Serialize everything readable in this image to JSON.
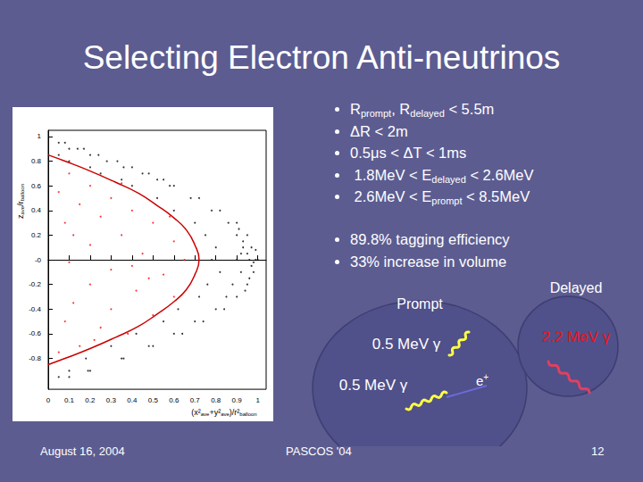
{
  "title": "Selecting Electron Anti-neutrinos",
  "bullets": [
    [
      {
        "t": "R"
      },
      {
        "t": "prompt",
        "sub": true
      },
      {
        "t": ", R"
      },
      {
        "t": "delayed",
        "sub": true
      },
      {
        "t": " < 5.5m"
      }
    ],
    [
      {
        "t": "ΔR < 2m"
      }
    ],
    [
      {
        "t": "0.5μs < ΔT < 1ms"
      }
    ],
    [
      {
        "t": " 1.8MeV < E"
      },
      {
        "t": "delayed",
        "sub": true
      },
      {
        "t": " < 2.6MeV"
      }
    ],
    [
      {
        "t": " 2.6MeV < E"
      },
      {
        "t": "prompt",
        "sub": true
      },
      {
        "t": " < 8.5MeV"
      }
    ]
  ],
  "bullets2": [
    [
      {
        "t": "89.8% tagging efficiency"
      }
    ],
    [
      {
        "t": "33% increase in volume"
      }
    ]
  ],
  "diagram": {
    "prompt": "Prompt",
    "delayed": "Delayed",
    "gamma_a": "0.5 MeV γ",
    "gamma_b": "0.5 MeV γ",
    "gamma_delayed": "2.2 MeV γ",
    "positron": [
      {
        "t": "e"
      },
      {
        "t": "+",
        "sup": true
      }
    ]
  },
  "footer": {
    "date": "August 16, 2004",
    "venue": "PASCOS '04",
    "page": "12"
  },
  "chart_data": {
    "type": "scatter",
    "xlabel": [
      {
        "t": "(x²"
      },
      {
        "t": "ave",
        "sub": true
      },
      {
        "t": "+y²"
      },
      {
        "t": "ave",
        "sub": true
      },
      {
        "t": ")/r²"
      },
      {
        "t": "balloon",
        "sub": true
      }
    ],
    "ylabel": [
      {
        "t": "z"
      },
      {
        "t": "ave",
        "sub": true
      },
      {
        "t": "/r"
      },
      {
        "t": "balloon",
        "sub": true
      }
    ],
    "xlim": [
      0,
      1.04
    ],
    "ylim": [
      -1.05,
      1.05
    ],
    "xticks": [
      0,
      0.1,
      0.2,
      0.3,
      0.4,
      0.5,
      0.6,
      0.7,
      0.8,
      0.9,
      1
    ],
    "yticks": [
      -0.8,
      -0.6,
      -0.4,
      -0.2,
      {
        "value": 0,
        "label": "-0"
      },
      0.2,
      0.4,
      0.6,
      0.8,
      1
    ],
    "series": [
      {
        "type": "scatter",
        "color": "#000000",
        "marker": "dot",
        "values": [
          [
            0.05,
            0.95
          ],
          [
            0.08,
            0.95
          ],
          [
            0.1,
            0.9
          ],
          [
            0.14,
            0.9
          ],
          [
            0.17,
            0.9
          ],
          [
            0.05,
            0.85
          ],
          [
            0.2,
            0.85
          ],
          [
            0.24,
            0.85
          ],
          [
            0.1,
            0.8
          ],
          [
            0.28,
            0.8
          ],
          [
            0.33,
            0.8
          ],
          [
            0.2,
            0.75
          ],
          [
            0.4,
            0.75
          ],
          [
            0.36,
            0.75
          ],
          [
            0.25,
            0.7
          ],
          [
            0.45,
            0.7
          ],
          [
            0.48,
            0.7
          ],
          [
            0.35,
            0.65
          ],
          [
            0.52,
            0.65
          ],
          [
            0.55,
            0.65
          ],
          [
            0.4,
            0.6
          ],
          [
            0.58,
            0.6
          ],
          [
            0.6,
            0.6
          ],
          [
            0.52,
            0.5
          ],
          [
            0.68,
            0.5
          ],
          [
            0.72,
            0.5
          ],
          [
            0.6,
            0.4
          ],
          [
            0.78,
            0.4
          ],
          [
            0.82,
            0.4
          ],
          [
            0.7,
            0.3
          ],
          [
            0.86,
            0.3
          ],
          [
            0.9,
            0.3
          ],
          [
            0.75,
            0.2
          ],
          [
            0.9,
            0.2
          ],
          [
            0.95,
            0.2
          ],
          [
            0.8,
            0.1
          ],
          [
            0.93,
            0.1
          ],
          [
            0.97,
            0.1
          ],
          [
            0.78,
            0
          ],
          [
            0.9,
            0
          ],
          [
            0.96,
            0
          ],
          [
            0.99,
            0
          ],
          [
            0.82,
            -0.1
          ],
          [
            0.92,
            -0.1
          ],
          [
            0.98,
            -0.1
          ],
          [
            0.76,
            -0.2
          ],
          [
            0.88,
            -0.2
          ],
          [
            0.95,
            -0.2
          ],
          [
            0.72,
            -0.3
          ],
          [
            0.85,
            -0.3
          ],
          [
            0.9,
            -0.3
          ],
          [
            0.62,
            -0.4
          ],
          [
            0.8,
            -0.4
          ],
          [
            0.84,
            -0.4
          ],
          [
            0.55,
            -0.5
          ],
          [
            0.7,
            -0.5
          ],
          [
            0.74,
            -0.5
          ],
          [
            0.42,
            -0.6
          ],
          [
            0.6,
            -0.6
          ],
          [
            0.64,
            -0.6
          ],
          [
            0.3,
            -0.7
          ],
          [
            0.48,
            -0.7
          ],
          [
            0.5,
            -0.7
          ],
          [
            0.18,
            -0.8
          ],
          [
            0.35,
            -0.8
          ],
          [
            0.36,
            -0.8
          ],
          [
            0.1,
            -0.9
          ],
          [
            0.2,
            -0.9
          ],
          [
            0.19,
            -0.9
          ],
          [
            0.05,
            -0.95
          ],
          [
            0.1,
            -0.95
          ],
          [
            0.95,
            0.05
          ],
          [
            0.97,
            -0.05
          ],
          [
            0.93,
            0.15
          ],
          [
            0.96,
            -0.15
          ],
          [
            0.99,
            0.08
          ],
          [
            0.98,
            -0.02
          ],
          [
            0.91,
            0.25
          ],
          [
            0.94,
            -0.25
          ],
          [
            1.0,
            0.0
          ],
          [
            0.92,
            0.05
          ]
        ]
      },
      {
        "type": "scatter",
        "color": "#ff0000",
        "marker": "dot",
        "values": [
          [
            0.1,
            0.7
          ],
          [
            0.2,
            0.6
          ],
          [
            0.05,
            0.55
          ],
          [
            0.3,
            0.5
          ],
          [
            0.15,
            0.45
          ],
          [
            0.4,
            0.4
          ],
          [
            0.25,
            0.35
          ],
          [
            0.5,
            0.3
          ],
          [
            0.08,
            0.3
          ],
          [
            0.35,
            0.2
          ],
          [
            0.6,
            0.15
          ],
          [
            0.2,
            0.12
          ],
          [
            0.45,
            0.05
          ],
          [
            0.65,
            0.0
          ],
          [
            0.1,
            -0.02
          ],
          [
            0.3,
            -0.08
          ],
          [
            0.55,
            -0.12
          ],
          [
            0.2,
            -0.2
          ],
          [
            0.42,
            -0.25
          ],
          [
            0.6,
            -0.3
          ],
          [
            0.12,
            -0.35
          ],
          [
            0.3,
            -0.4
          ],
          [
            0.5,
            -0.45
          ],
          [
            0.08,
            -0.5
          ],
          [
            0.25,
            -0.55
          ],
          [
            0.38,
            -0.6
          ],
          [
            0.15,
            -0.7
          ],
          [
            0.05,
            -0.75
          ],
          [
            0.22,
            -0.65
          ],
          [
            0.48,
            -0.15
          ],
          [
            0.58,
            0.35
          ],
          [
            0.35,
            0.62
          ],
          [
            0.12,
            0.2
          ],
          [
            0.4,
            -0.05
          ]
        ]
      },
      {
        "type": "line",
        "color": "#cc0000",
        "line_style": "solid",
        "values": [
          [
            0,
            0.85
          ],
          [
            0.08,
            0.8
          ],
          [
            0.2,
            0.72
          ],
          [
            0.32,
            0.63
          ],
          [
            0.43,
            0.54
          ],
          [
            0.52,
            0.44
          ],
          [
            0.6,
            0.34
          ],
          [
            0.66,
            0.24
          ],
          [
            0.7,
            0.12
          ],
          [
            0.72,
            0
          ],
          [
            0.7,
            -0.12
          ],
          [
            0.66,
            -0.24
          ],
          [
            0.6,
            -0.34
          ],
          [
            0.52,
            -0.44
          ],
          [
            0.43,
            -0.54
          ],
          [
            0.32,
            -0.63
          ],
          [
            0.2,
            -0.72
          ],
          [
            0.08,
            -0.8
          ],
          [
            0,
            -0.85
          ]
        ]
      }
    ],
    "grid": false
  }
}
